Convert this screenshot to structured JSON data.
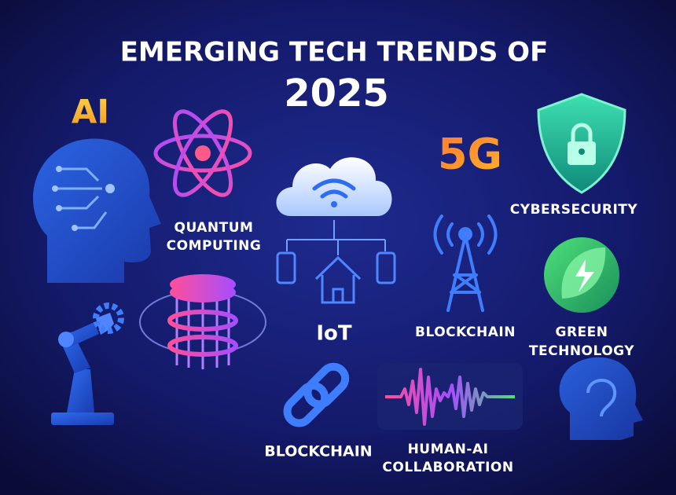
{
  "header": {
    "title": "EMERGING TECH TRENDS OF",
    "year": "2025"
  },
  "items": {
    "ai": {
      "label": "AI"
    },
    "quantum": {
      "lines": [
        "QUANTUM",
        "COMPUTING"
      ]
    },
    "iot": {
      "label": "IoT"
    },
    "five_g": {
      "label": "5G"
    },
    "cybersecurity": {
      "label": "CYBERSECURITY"
    },
    "tower": {
      "label": "BLOCKCHAIN"
    },
    "green": {
      "lines": [
        "GREEN",
        "TECHNOLOGY"
      ]
    },
    "blockchain": {
      "label": "BLOCKCHAIN"
    },
    "human_ai": {
      "lines": [
        "HUMAN-AI",
        "COLLABORATION"
      ]
    }
  }
}
